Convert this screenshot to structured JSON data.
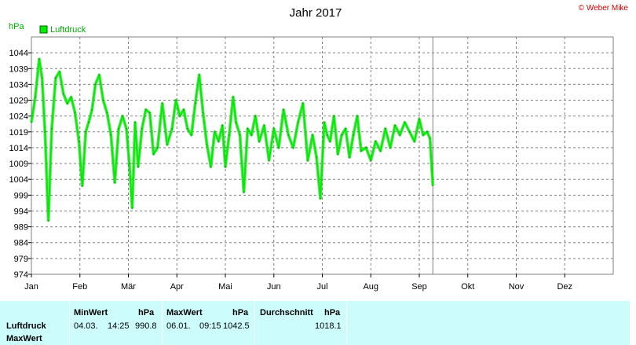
{
  "chart_data": {
    "type": "line",
    "title": "Jahr 2017",
    "copyright": "© Weber Mike",
    "ylabel": "hPa",
    "legend": [
      "Luftdruck"
    ],
    "legend_position": "top-left",
    "color": "#00ee00",
    "grid": true,
    "ylim": [
      974,
      1049
    ],
    "yticks": [
      1044,
      1039,
      1034,
      1029,
      1024,
      1019,
      1014,
      1009,
      1004,
      999,
      994,
      989,
      984,
      979,
      974
    ],
    "xlim": [
      0,
      12
    ],
    "xticks": [
      "Jan",
      "Feb",
      "Mär",
      "Apr",
      "Mai",
      "Jun",
      "Jul",
      "Aug",
      "Sep",
      "Okt",
      "Nov",
      "Dez"
    ],
    "current_marker_x": 8.28,
    "x": [
      0.0,
      0.08,
      0.16,
      0.22,
      0.28,
      0.35,
      0.42,
      0.5,
      0.58,
      0.66,
      0.74,
      0.82,
      0.9,
      0.98,
      1.05,
      1.12,
      1.18,
      1.25,
      1.32,
      1.4,
      1.48,
      1.56,
      1.64,
      1.72,
      1.8,
      1.88,
      1.96,
      2.02,
      2.08,
      2.14,
      2.2,
      2.28,
      2.36,
      2.44,
      2.52,
      2.6,
      2.7,
      2.8,
      2.9,
      2.98,
      3.06,
      3.14,
      3.22,
      3.3,
      3.38,
      3.46,
      3.54,
      3.62,
      3.7,
      3.78,
      3.86,
      3.94,
      4.0,
      4.08,
      4.16,
      4.22,
      4.3,
      4.38,
      4.46,
      4.54,
      4.62,
      4.7,
      4.8,
      4.9,
      5.0,
      5.1,
      5.2,
      5.3,
      5.4,
      5.5,
      5.6,
      5.7,
      5.8,
      5.88,
      5.96,
      6.04,
      6.1,
      6.16,
      6.24,
      6.32,
      6.4,
      6.48,
      6.56,
      6.64,
      6.72,
      6.8,
      6.9,
      7.0,
      7.1,
      7.2,
      7.3,
      7.4,
      7.5,
      7.6,
      7.7,
      7.8,
      7.9,
      8.0,
      8.08,
      8.16,
      8.22,
      8.28
    ],
    "values": [
      1022,
      1030,
      1042,
      1036,
      1019,
      991,
      1020,
      1036,
      1038,
      1031,
      1028,
      1030,
      1025,
      1016,
      1002,
      1019,
      1022,
      1026,
      1034,
      1037,
      1029,
      1025,
      1018,
      1003,
      1020,
      1024,
      1020,
      1009,
      995,
      1022,
      1008,
      1020,
      1026,
      1025,
      1012,
      1014,
      1028,
      1015,
      1020,
      1029,
      1024,
      1026,
      1020,
      1018,
      1028,
      1037,
      1025,
      1015,
      1008,
      1019,
      1016,
      1021,
      1008,
      1018,
      1030,
      1022,
      1018,
      1000,
      1020,
      1018,
      1024,
      1016,
      1021,
      1010,
      1020,
      1014,
      1026,
      1018,
      1014,
      1022,
      1028,
      1010,
      1018,
      1011,
      998,
      1022,
      1018,
      1016,
      1024,
      1012,
      1018,
      1020,
      1011,
      1018,
      1024,
      1013,
      1014,
      1010,
      1016,
      1013,
      1020,
      1014,
      1021,
      1018,
      1022,
      1019,
      1016,
      1023,
      1018,
      1019,
      1017,
      1002
    ]
  },
  "stats": {
    "headers": {
      "min_label": "MinWert",
      "min_unit": "hPa",
      "max_label": "MaxWert",
      "max_unit": "hPa",
      "avg_label": "Durchschnitt",
      "avg_unit": "hPa"
    },
    "row_labels": [
      "Luftdruck",
      "MaxWert"
    ],
    "min_date": "04.03.",
    "min_time": "14:25",
    "min_value": "990.8",
    "max_date": "06.01.",
    "max_time": "09:15",
    "max_value": "1042.5",
    "avg_value": "1018.1"
  }
}
